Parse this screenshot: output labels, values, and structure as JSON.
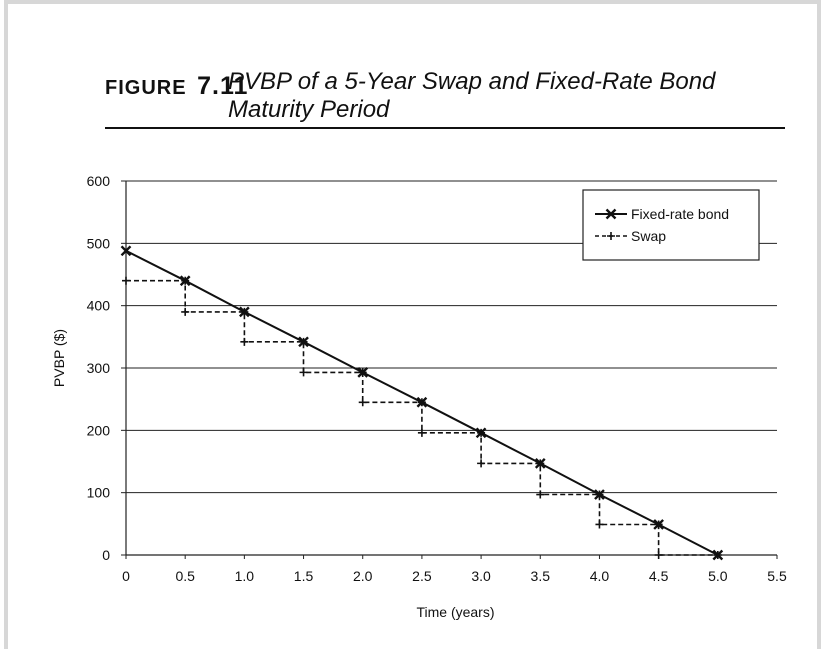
{
  "figure": {
    "label_word": "FIGURE",
    "label_number": "7.11",
    "title": "PVBP of a 5-Year Swap and Fixed-Rate Bond Maturity Period"
  },
  "chart_data": {
    "type": "line",
    "title": "",
    "xlabel": "Time (years)",
    "ylabel": "PVBP ($)",
    "xlim": [
      0,
      5.5
    ],
    "ylim": [
      0,
      600
    ],
    "x_ticks": [
      "0",
      "0.5",
      "1.0",
      "1.5",
      "2.0",
      "2.5",
      "3.0",
      "3.5",
      "4.0",
      "4.5",
      "5.0",
      "5.5"
    ],
    "y_ticks": [
      "0",
      "100",
      "200",
      "300",
      "400",
      "500",
      "600"
    ],
    "grid": "horizontal",
    "legend_position": "top-right",
    "series": [
      {
        "name": "Fixed-rate bond",
        "style": "solid",
        "marker": "x",
        "x": [
          0,
          0.5,
          1.0,
          1.5,
          2.0,
          2.5,
          3.0,
          3.5,
          4.0,
          4.5,
          5.0
        ],
        "y": [
          488,
          440,
          390,
          342,
          293,
          245,
          196,
          147,
          97,
          49,
          0
        ]
      },
      {
        "name": "Swap",
        "style": "dashed-step",
        "marker": "+",
        "x": [
          0,
          0.5,
          0.5,
          1.0,
          1.0,
          1.5,
          1.5,
          2.0,
          2.0,
          2.5,
          2.5,
          3.0,
          3.0,
          3.5,
          3.5,
          4.0,
          4.0,
          4.5,
          4.5,
          5.0
        ],
        "y": [
          440,
          440,
          390,
          390,
          342,
          342,
          293,
          293,
          245,
          245,
          196,
          196,
          147,
          147,
          97,
          97,
          49,
          49,
          0,
          0
        ]
      }
    ]
  }
}
